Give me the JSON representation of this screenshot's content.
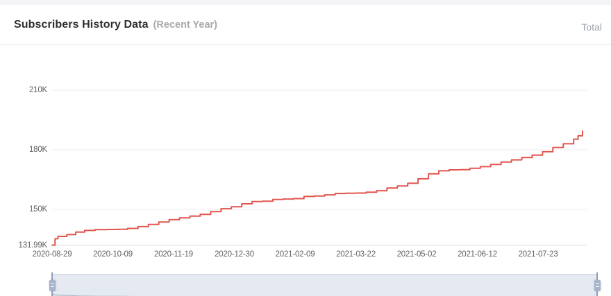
{
  "header": {
    "title": "Subscribers History Data",
    "subtitle": "(Recent Year)",
    "legend": {
      "total_label": "Total"
    }
  },
  "colors": {
    "line": "#e0564e",
    "grid": "#eeeeee",
    "axis": "#dcdcdc",
    "axis_text": "#606060",
    "brush_bg": "#e4e9f2",
    "brush_border": "#c9d3e0",
    "brush_line": "#a9b4c6",
    "brush_fill": "#d6dbe6",
    "brush_handle": "#8e9eb6",
    "brush_grip": "#a6b3c9"
  },
  "chart_data": {
    "type": "line",
    "title": "Subscribers History Data (Recent Year)",
    "series_name": "Total",
    "line_style": "step-after",
    "unit": "thousand subscribers",
    "legend_position": "top-right",
    "grid": "horizontal-only",
    "x_axis": {
      "ticks": [
        "2020-08-29",
        "2020-10-09",
        "2020-11-19",
        "2020-12-30",
        "2021-02-09",
        "2021-03-22",
        "2021-05-02",
        "2021-06-12",
        "2021-07-23"
      ]
    },
    "y_axis": {
      "min": 131.99,
      "min_label": "131.99K",
      "max": 210,
      "ticks": [
        {
          "value": 150,
          "label": "150K"
        },
        {
          "value": 180,
          "label": "180K"
        },
        {
          "value": 210,
          "label": "210K"
        }
      ]
    },
    "points": [
      [
        "2020-08-29",
        131.99
      ],
      [
        "2020-08-31",
        135.2
      ],
      [
        "2020-09-02",
        136.4
      ],
      [
        "2020-09-08",
        137.3
      ],
      [
        "2020-09-14",
        138.6
      ],
      [
        "2020-09-20",
        139.4
      ],
      [
        "2020-09-27",
        139.8
      ],
      [
        "2020-10-05",
        139.9
      ],
      [
        "2020-10-12",
        140.0
      ],
      [
        "2020-10-19",
        140.4
      ],
      [
        "2020-10-26",
        141.3
      ],
      [
        "2020-11-02",
        142.4
      ],
      [
        "2020-11-09",
        143.6
      ],
      [
        "2020-11-16",
        144.8
      ],
      [
        "2020-11-23",
        145.7
      ],
      [
        "2020-11-30",
        146.6
      ],
      [
        "2020-12-07",
        147.5
      ],
      [
        "2020-12-14",
        148.9
      ],
      [
        "2020-12-21",
        150.3
      ],
      [
        "2020-12-28",
        151.3
      ],
      [
        "2021-01-04",
        152.8
      ],
      [
        "2021-01-11",
        153.9
      ],
      [
        "2021-01-18",
        154.1
      ],
      [
        "2021-01-25",
        155.0
      ],
      [
        "2021-02-01",
        155.2
      ],
      [
        "2021-02-08",
        155.4
      ],
      [
        "2021-02-15",
        156.5
      ],
      [
        "2021-02-22",
        156.7
      ],
      [
        "2021-03-01",
        157.3
      ],
      [
        "2021-03-08",
        158.0
      ],
      [
        "2021-03-15",
        158.1
      ],
      [
        "2021-03-22",
        158.2
      ],
      [
        "2021-03-29",
        158.6
      ],
      [
        "2021-04-05",
        159.4
      ],
      [
        "2021-04-12",
        160.7
      ],
      [
        "2021-04-19",
        161.8
      ],
      [
        "2021-04-26",
        163.1
      ],
      [
        "2021-05-03",
        165.4
      ],
      [
        "2021-05-10",
        167.9
      ],
      [
        "2021-05-17",
        169.4
      ],
      [
        "2021-05-24",
        169.9
      ],
      [
        "2021-05-31",
        170.0
      ],
      [
        "2021-06-07",
        170.7
      ],
      [
        "2021-06-14",
        171.5
      ],
      [
        "2021-06-21",
        172.6
      ],
      [
        "2021-06-28",
        173.8
      ],
      [
        "2021-07-05",
        174.9
      ],
      [
        "2021-07-12",
        176.1
      ],
      [
        "2021-07-19",
        177.3
      ],
      [
        "2021-07-26",
        179.0
      ],
      [
        "2021-08-02",
        181.1
      ],
      [
        "2021-08-09",
        183.0
      ],
      [
        "2021-08-16",
        185.3
      ],
      [
        "2021-08-19",
        187.0
      ],
      [
        "2021-08-22",
        189.4
      ]
    ]
  }
}
